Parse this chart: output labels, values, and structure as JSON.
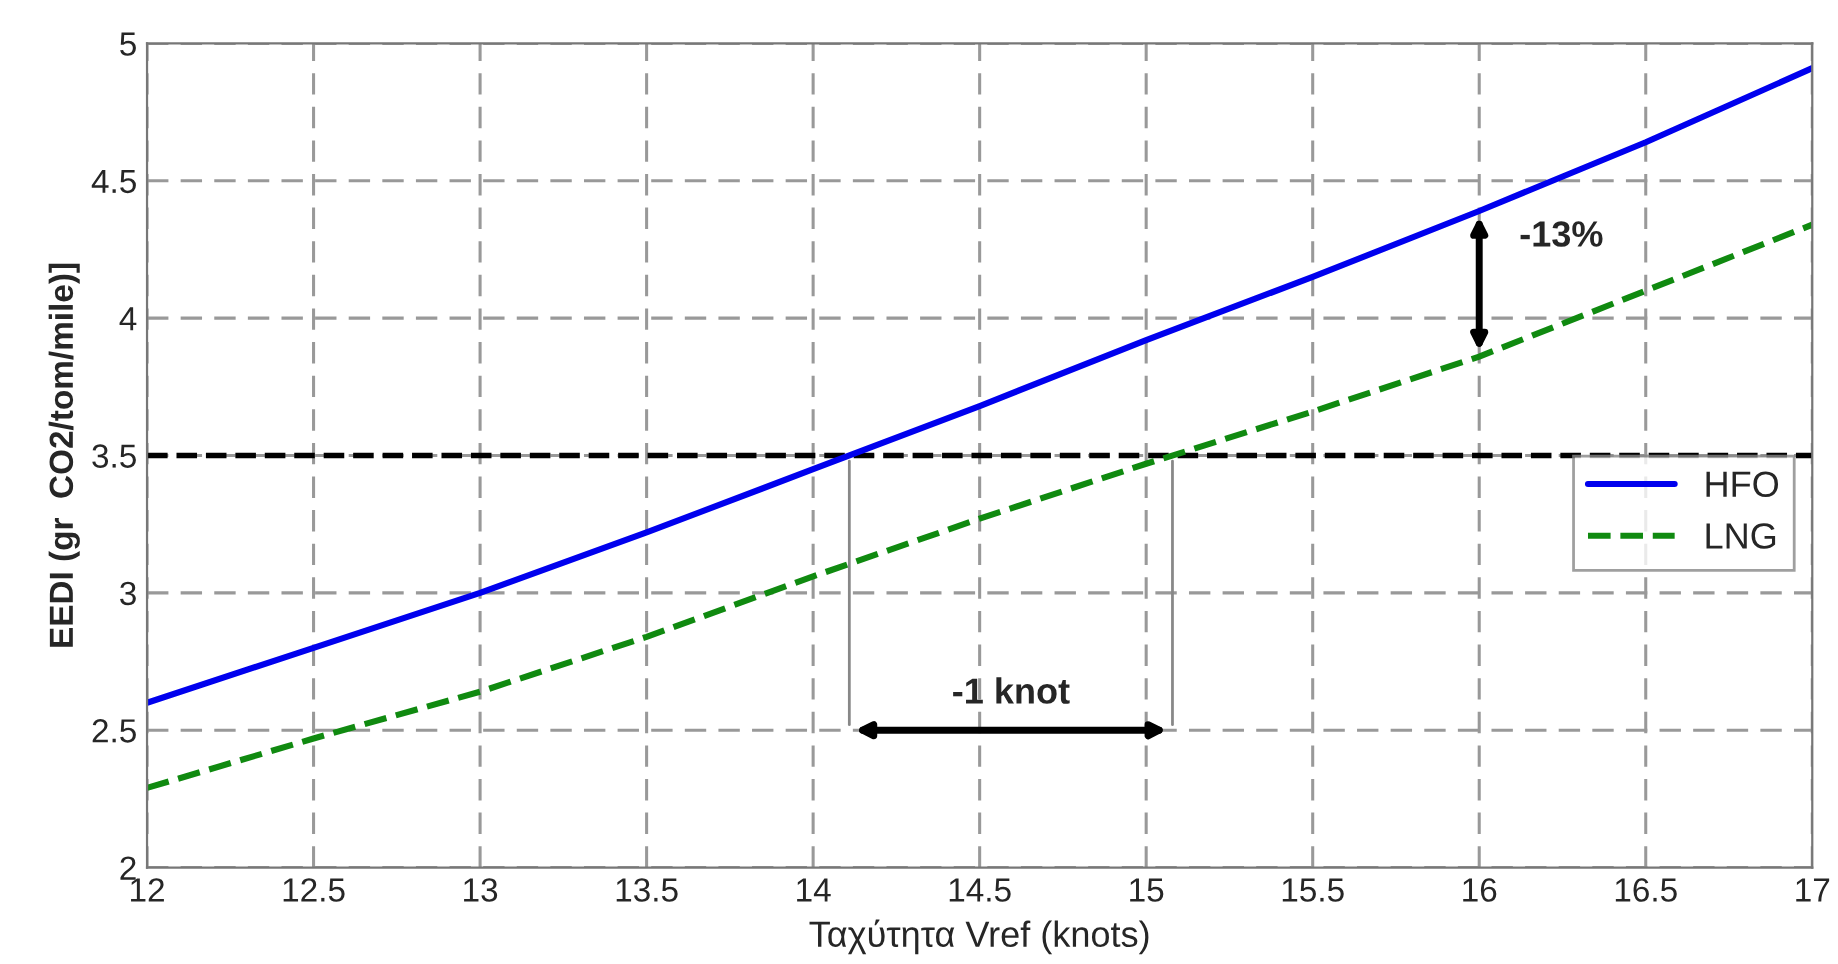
{
  "chart_data": {
    "type": "line",
    "xlabel": "Ταχύτητα Vref (knots)",
    "ylabel": "EEDI (gr  CO2/tom/mile)]",
    "x": [
      12,
      12.5,
      13,
      13.5,
      14,
      14.5,
      15,
      15.5,
      16,
      16.5,
      17
    ],
    "series": [
      {
        "name": "HFO",
        "color": "#0000ee",
        "line_style": "solid",
        "values": [
          2.6,
          2.8,
          3.0,
          3.22,
          3.45,
          3.68,
          3.92,
          4.15,
          4.39,
          4.64,
          4.91
        ]
      },
      {
        "name": "LNG",
        "color": "#108a10",
        "line_style": "dashed",
        "values": [
          2.29,
          2.47,
          2.64,
          2.84,
          3.06,
          3.27,
          3.47,
          3.66,
          3.86,
          4.1,
          4.34
        ]
      }
    ],
    "xlim": [
      12,
      17
    ],
    "xticks": [
      12,
      12.5,
      13,
      13.5,
      14,
      14.5,
      15,
      15.5,
      16,
      16.5,
      17
    ],
    "ylim": [
      2,
      5
    ],
    "yticks": [
      2,
      2.5,
      3,
      3.5,
      4,
      4.5,
      5
    ],
    "ref_lines": [
      {
        "axis": "y",
        "value": 3.5,
        "color": "#000000",
        "line_style": "dashed"
      }
    ],
    "annotations": [
      "-1 knot",
      "-13%"
    ],
    "grid": true,
    "legend": "right",
    "marker": "none"
  }
}
